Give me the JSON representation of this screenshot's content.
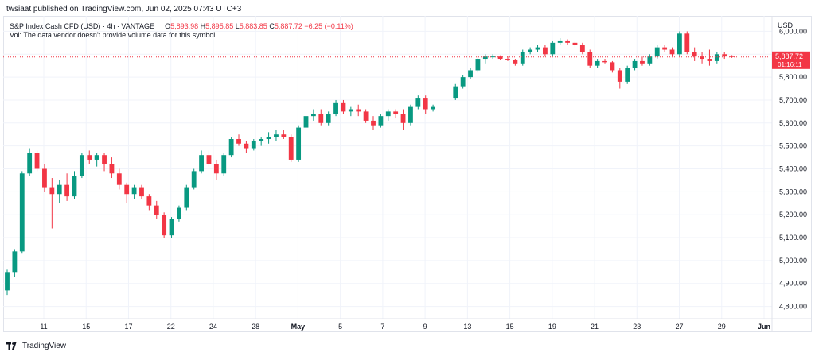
{
  "caption": "twsiaat published on TradingView.com, Jun 02, 2025 07:43 UTC+3",
  "legend": {
    "title": "S&P Index Cash CFD (USD) · 4h · VANTAGE",
    "o_label": "O",
    "o": "5,893.98",
    "h_label": "H",
    "h": "5,895.85",
    "l_label": "L",
    "l": "5,883.85",
    "c_label": "C",
    "c": "5,887.72",
    "change": "−6.25 (−0.11%)"
  },
  "vol_note": "Vol: The data vendor doesn't provide volume data for this symbol.",
  "currency": "USD",
  "last_price": {
    "price": "5,887.72",
    "countdown": "01:16:11",
    "value": 5887.72
  },
  "footer": {
    "brand": "TradingView"
  },
  "colors": {
    "up": "#089981",
    "down": "#f23645",
    "grid": "#f0f3fa",
    "axis_text": "#131722"
  },
  "chart_data": {
    "type": "candlestick",
    "title": "S&P Index Cash CFD (USD) · 4h · VANTAGE",
    "ylim": [
      4750,
      6050
    ],
    "y_ticks": [
      "6,000.00",
      "5,900.00",
      "5,800.00",
      "5,700.00",
      "5,600.00",
      "5,500.00",
      "5,400.00",
      "5,300.00",
      "5,200.00",
      "5,100.00",
      "5,000.00",
      "4,900.00",
      "4,800.00"
    ],
    "x_ticks": [
      "11",
      "15",
      "17",
      "22",
      "24",
      "28",
      "May",
      "5",
      "7",
      "9",
      "13",
      "15",
      "19",
      "21",
      "23",
      "27",
      "29",
      "Jun"
    ],
    "grid": true,
    "series": [
      {
        "segments": [
          [
            4870,
            4960,
            4850,
            4950
          ],
          [
            4950,
            5050,
            4930,
            5040
          ],
          [
            5040,
            5390,
            5030,
            5380
          ],
          [
            5380,
            5490,
            5370,
            5470
          ],
          [
            5470,
            5480,
            5390,
            5400
          ],
          [
            5400,
            5420,
            5300,
            5320
          ],
          [
            5320,
            5360,
            5140,
            5290
          ],
          [
            5290,
            5350,
            5250,
            5330
          ],
          [
            5330,
            5380,
            5260,
            5280
          ],
          [
            5280,
            5390,
            5270,
            5370
          ],
          [
            5370,
            5470,
            5360,
            5460
          ],
          [
            5460,
            5480,
            5420,
            5440
          ],
          [
            5440,
            5470,
            5410,
            5460
          ],
          [
            5460,
            5470,
            5390,
            5420
          ],
          [
            5420,
            5450,
            5360,
            5380
          ],
          [
            5380,
            5400,
            5310,
            5330
          ],
          [
            5330,
            5340,
            5250,
            5290
          ],
          [
            5290,
            5330,
            5270,
            5320
          ],
          [
            5320,
            5330,
            5270,
            5280
          ],
          [
            5280,
            5290,
            5220,
            5240
          ],
          [
            5240,
            5260,
            5180,
            5200
          ],
          [
            5200,
            5210,
            5100,
            5110
          ],
          [
            5110,
            5190,
            5100,
            5180
          ],
          [
            5180,
            5240,
            5170,
            5230
          ],
          [
            5230,
            5330,
            5220,
            5320
          ],
          [
            5320,
            5400,
            5310,
            5390
          ],
          [
            5390,
            5480,
            5380,
            5460
          ],
          [
            5460,
            5480,
            5410,
            5420
          ],
          [
            5420,
            5440,
            5350,
            5380
          ],
          [
            5380,
            5470,
            5370,
            5460
          ],
          [
            5460,
            5540,
            5450,
            5530
          ],
          [
            5530,
            5550,
            5500,
            5510
          ],
          [
            5510,
            5520,
            5470,
            5490
          ],
          [
            5490,
            5530,
            5480,
            5520
          ],
          [
            5520,
            5540,
            5500,
            5530
          ],
          [
            5530,
            5560,
            5510,
            5540
          ],
          [
            5540,
            5570,
            5520,
            5550
          ],
          [
            5550,
            5570,
            5530,
            5540
          ],
          [
            5540,
            5550,
            5430,
            5440
          ],
          [
            5440,
            5590,
            5430,
            5580
          ],
          [
            5580,
            5640,
            5570,
            5630
          ],
          [
            5630,
            5660,
            5610,
            5640
          ],
          [
            5640,
            5660,
            5590,
            5600
          ],
          [
            5600,
            5650,
            5590,
            5640
          ],
          [
            5640,
            5700,
            5630,
            5690
          ],
          [
            5690,
            5700,
            5640,
            5650
          ],
          [
            5650,
            5670,
            5630,
            5660
          ],
          [
            5660,
            5680,
            5630,
            5650
          ],
          [
            5650,
            5660,
            5600,
            5610
          ],
          [
            5610,
            5630,
            5570,
            5590
          ],
          [
            5590,
            5640,
            5580,
            5630
          ],
          [
            5630,
            5660,
            5610,
            5650
          ],
          [
            5650,
            5660,
            5620,
            5640
          ],
          [
            5640,
            5660,
            5570,
            5600
          ],
          [
            5600,
            5680,
            5590,
            5670
          ],
          [
            5670,
            5720,
            5660,
            5710
          ],
          [
            5710,
            5720,
            5640,
            5660
          ],
          [
            5660,
            5680,
            5650,
            5670
          ]
        ]
      },
      {
        "segments": [
          [
            5710,
            5770,
            5700,
            5760
          ],
          [
            5760,
            5810,
            5750,
            5800
          ],
          [
            5800,
            5840,
            5790,
            5830
          ],
          [
            5830,
            5890,
            5820,
            5880
          ],
          [
            5880,
            5900,
            5860,
            5890
          ],
          [
            5890,
            5900,
            5880,
            5890
          ],
          [
            5890,
            5895,
            5875,
            5880
          ],
          [
            5880,
            5890,
            5870,
            5875
          ],
          [
            5875,
            5880,
            5850,
            5860
          ],
          [
            5860,
            5920,
            5850,
            5910
          ],
          [
            5910,
            5930,
            5900,
            5920
          ],
          [
            5920,
            5940,
            5910,
            5930
          ],
          [
            5930,
            5940,
            5890,
            5900
          ],
          [
            5900,
            5960,
            5890,
            5950
          ],
          [
            5950,
            5970,
            5940,
            5960
          ],
          [
            5960,
            5965,
            5940,
            5950
          ],
          [
            5950,
            5960,
            5930,
            5940
          ],
          [
            5940,
            5950,
            5900,
            5910
          ],
          [
            5910,
            5920,
            5840,
            5850
          ],
          [
            5850,
            5880,
            5840,
            5870
          ],
          [
            5870,
            5880,
            5860,
            5865
          ],
          [
            5865,
            5870,
            5820,
            5830
          ],
          [
            5830,
            5840,
            5750,
            5780
          ],
          [
            5780,
            5850,
            5770,
            5840
          ],
          [
            5840,
            5880,
            5830,
            5870
          ],
          [
            5870,
            5890,
            5850,
            5860
          ],
          [
            5860,
            5900,
            5850,
            5890
          ],
          [
            5890,
            5940,
            5880,
            5930
          ],
          [
            5930,
            5940,
            5910,
            5920
          ],
          [
            5920,
            5930,
            5890,
            5900
          ],
          [
            5900,
            6000,
            5890,
            5990
          ],
          [
            5990,
            6000,
            5900,
            5910
          ],
          [
            5910,
            5930,
            5870,
            5890
          ],
          [
            5890,
            5910,
            5860,
            5880
          ],
          [
            5880,
            5920,
            5850,
            5870
          ],
          [
            5870,
            5910,
            5860,
            5900
          ],
          [
            5900,
            5910,
            5880,
            5890
          ],
          [
            5894,
            5896,
            5884,
            5888
          ]
        ]
      }
    ]
  }
}
